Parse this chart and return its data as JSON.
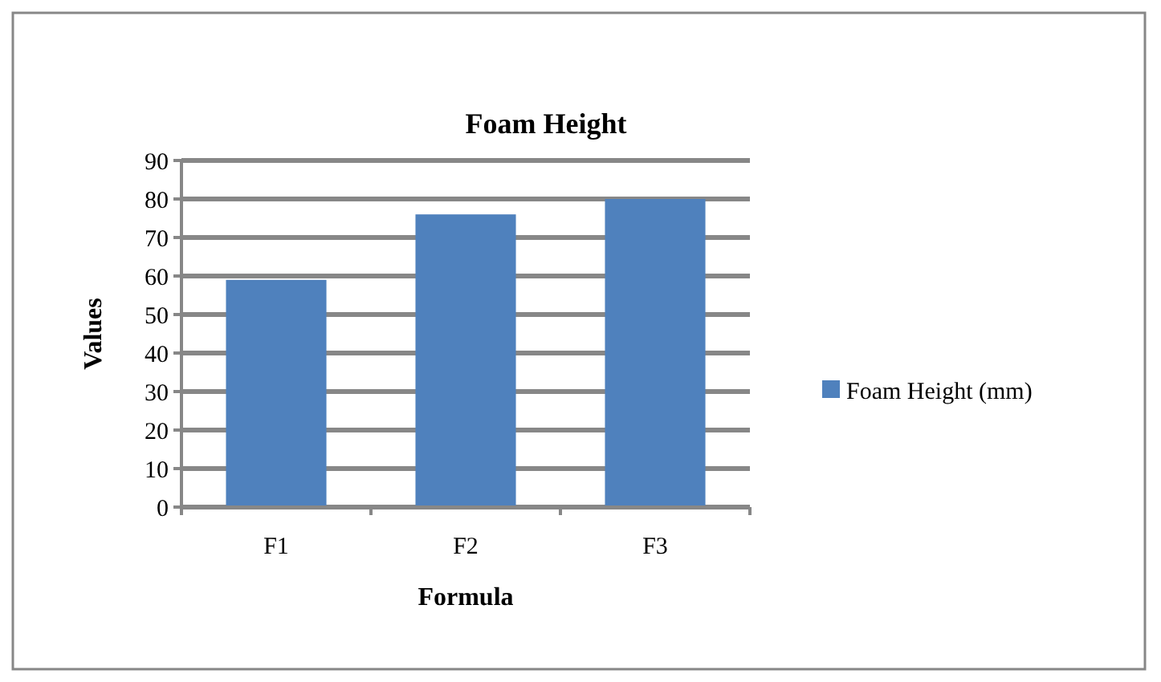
{
  "chart_data": {
    "type": "bar",
    "title": "Foam Height",
    "xlabel": "Formula",
    "ylabel": "Values",
    "categories": [
      "F1",
      "F2",
      "F3"
    ],
    "series": [
      {
        "name": "Foam Height (mm)",
        "color": "#4f81bd",
        "values": [
          59,
          76,
          80
        ]
      }
    ],
    "ylim": [
      0,
      90
    ],
    "yticks": [
      0,
      10,
      20,
      30,
      40,
      50,
      60,
      70,
      80,
      90
    ],
    "grid": "y",
    "legend": "right"
  }
}
